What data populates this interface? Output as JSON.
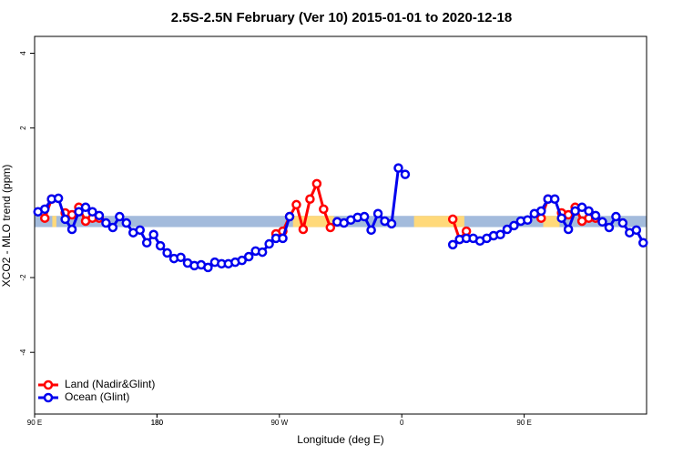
{
  "chart_data": {
    "type": "line",
    "title": "2.5S-2.5N February (Ver 10)   2015-01-01 to 2020-12-18",
    "xlabel": "Longitude (deg E)",
    "ylabel": "XCO2 - MLO trend (ppm)",
    "xlim": [
      90,
      540
    ],
    "ylim": [
      -5.65,
      4.45
    ],
    "xticks": [
      {
        "value": 90,
        "label": "90 E"
      },
      180,
      {
        "value": 270,
        "label": "90 W"
      },
      {
        "value": 360,
        "label": "0"
      },
      {
        "value": 450,
        "label": "90 E"
      },
      180
    ],
    "yticks": [
      -4,
      -2,
      2,
      4
    ],
    "legend": "bottom-left",
    "band": {
      "ylim": [
        -0.65,
        -0.35
      ],
      "color": "#a3bbdc",
      "land_color": "#ffd97a",
      "land_xranges": [
        [
          103,
          106
        ],
        [
          280,
          310
        ],
        [
          369,
          406
        ],
        [
          464,
          476
        ]
      ]
    },
    "x": [
      92.5,
      97.5,
      102.5,
      107.5,
      112.5,
      117.5,
      122.5,
      127.5,
      132.5,
      137.5,
      142.5,
      147.5,
      152.5,
      157.5,
      162.5,
      167.5,
      172.5,
      177.5,
      182.5,
      187.5,
      192.5,
      197.5,
      202.5,
      207.5,
      212.5,
      217.5,
      222.5,
      227.5,
      232.5,
      237.5,
      242.5,
      247.5,
      252.5,
      257.5,
      262.5,
      267.5,
      272.5,
      277.5,
      282.5,
      287.5,
      292.5,
      297.5,
      302.5,
      307.5,
      312.5,
      317.5,
      322.5,
      327.5,
      332.5,
      337.5,
      342.5,
      347.5,
      352.5,
      357.5,
      362.5,
      367.5,
      372.5,
      377.5,
      382.5,
      387.5,
      392.5,
      397.5,
      402.5,
      407.5,
      412.5,
      417.5,
      422.5,
      427.5,
      432.5,
      437.5,
      442.5,
      447.5,
      452.5,
      457.5,
      462.5,
      467.5,
      472.5,
      477.5,
      482.5,
      487.5,
      492.5,
      497.5,
      502.5,
      507.5,
      512.5,
      517.5,
      522.5,
      527.5,
      532.5,
      537.5
    ],
    "series": [
      {
        "name": "Land (Nadir&Glint)",
        "color": "#ff0000",
        "values": [
          null,
          -0.41,
          0.1,
          null,
          -0.27,
          -0.32,
          -0.12,
          -0.49,
          -0.41,
          -0.41,
          null,
          null,
          null,
          null,
          null,
          null,
          null,
          null,
          null,
          null,
          null,
          null,
          null,
          null,
          null,
          null,
          null,
          null,
          null,
          null,
          null,
          null,
          null,
          null,
          null,
          -0.83,
          -0.76,
          -0.37,
          -0.05,
          -0.71,
          0.1,
          0.51,
          -0.17,
          -0.66,
          -0.51,
          null,
          null,
          null,
          null,
          null,
          null,
          null,
          null,
          null,
          null,
          null,
          null,
          null,
          null,
          null,
          null,
          -0.44,
          -0.98,
          -0.76,
          null,
          null,
          null,
          null,
          null,
          null,
          null,
          null,
          null,
          null,
          -0.41,
          0.1,
          null,
          -0.27,
          -0.32,
          -0.12,
          -0.49,
          -0.41,
          -0.41,
          null,
          null,
          null,
          null,
          null,
          null,
          null
        ]
      },
      {
        "name": "Ocean (Glint)",
        "color": "#0000ee",
        "values": [
          -0.24,
          -0.17,
          0.1,
          0.12,
          -0.44,
          -0.71,
          -0.24,
          -0.12,
          -0.24,
          -0.34,
          -0.54,
          -0.66,
          -0.37,
          -0.54,
          -0.8,
          -0.73,
          -1.07,
          -0.85,
          -1.15,
          -1.34,
          -1.49,
          -1.46,
          -1.61,
          -1.68,
          -1.66,
          -1.73,
          -1.59,
          -1.63,
          -1.63,
          -1.59,
          -1.54,
          -1.44,
          -1.29,
          -1.32,
          -1.1,
          -0.95,
          -0.95,
          -0.37,
          null,
          null,
          null,
          null,
          null,
          null,
          -0.51,
          -0.54,
          -0.46,
          -0.39,
          -0.37,
          -0.73,
          -0.29,
          -0.49,
          -0.56,
          0.93,
          0.76,
          null,
          null,
          null,
          null,
          null,
          null,
          -1.12,
          -0.98,
          -0.95,
          -0.95,
          -1.02,
          -0.95,
          -0.88,
          -0.85,
          -0.71,
          -0.61,
          -0.49,
          -0.46,
          -0.29,
          -0.22,
          0.1,
          0.1,
          -0.41,
          -0.71,
          -0.22,
          -0.12,
          -0.22,
          -0.34,
          -0.51,
          -0.66,
          -0.37,
          -0.54,
          -0.8,
          -0.73,
          -1.07
        ]
      }
    ]
  }
}
